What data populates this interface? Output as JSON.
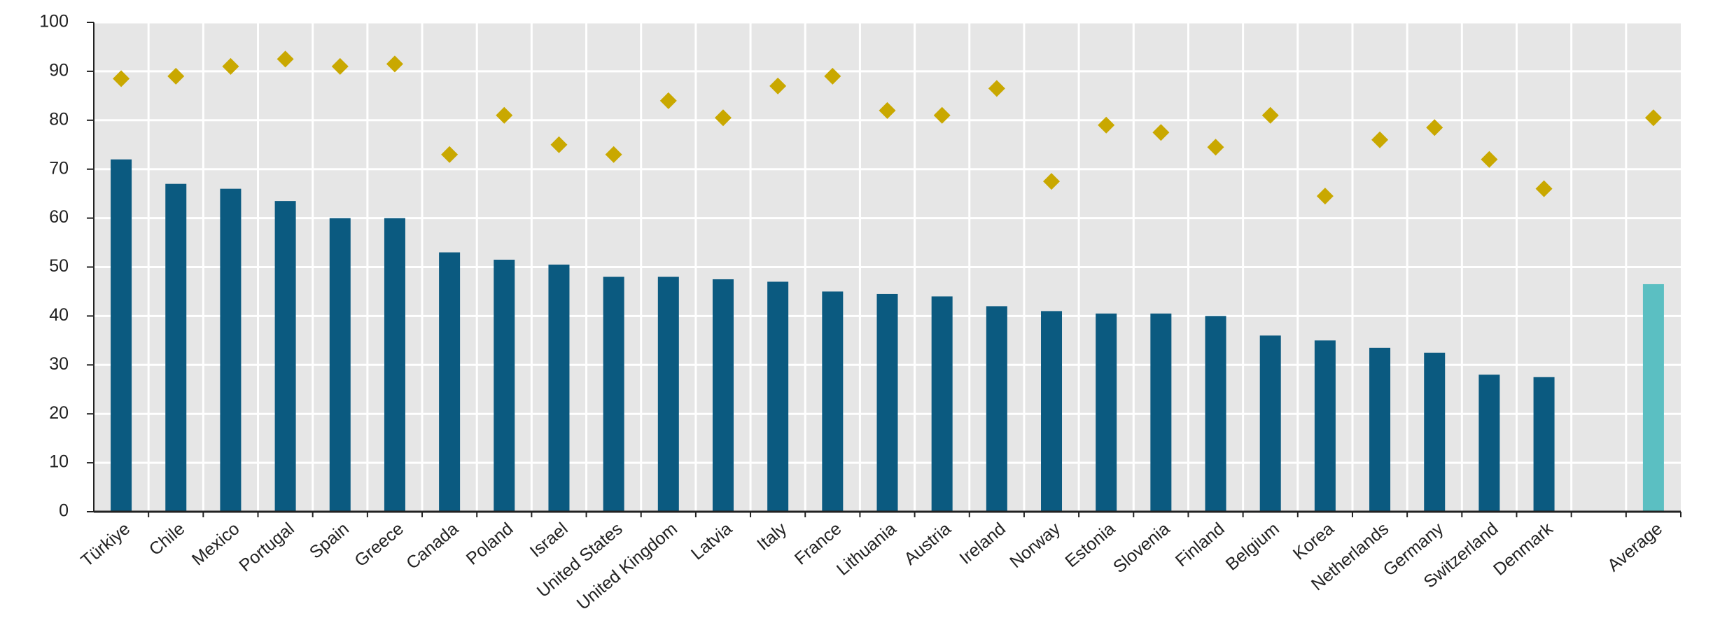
{
  "chart_data": {
    "type": "bar",
    "categories": [
      "Türkiye",
      "Chile",
      "Mexico",
      "Portugal",
      "Spain",
      "Greece",
      "Canada",
      "Poland",
      "Israel",
      "United States",
      "United Kingdom",
      "Latvia",
      "Italy",
      "France",
      "Lithuania",
      "Austria",
      "Ireland",
      "Norway",
      "Estonia",
      "Slovenia",
      "Finland",
      "Belgium",
      "Korea",
      "Netherlands",
      "Germany",
      "Switzerland",
      "Denmark",
      null,
      "Average"
    ],
    "series": [
      {
        "type": "bar",
        "color": "#0b5a80",
        "highlight_color": "#5bbfc2",
        "highlight_index": 28,
        "values": [
          72,
          67,
          66,
          63.5,
          60,
          60,
          53,
          51.5,
          50.5,
          48,
          48,
          47.5,
          47,
          45,
          44.5,
          44,
          42,
          41,
          40.5,
          40.5,
          40,
          36,
          35,
          33.5,
          32.5,
          28,
          27.5,
          null,
          46.5
        ]
      },
      {
        "type": "diamond",
        "color": "#c9a800",
        "values": [
          88.5,
          89,
          91,
          92.5,
          91,
          91.5,
          73,
          81,
          75,
          73,
          84,
          80.5,
          87,
          89,
          82,
          81,
          86.5,
          67.5,
          79,
          77.5,
          74.5,
          81,
          64.5,
          76,
          78.5,
          72,
          66,
          null,
          80.5
        ]
      }
    ],
    "ylim": [
      0,
      100
    ],
    "yticks": [
      0,
      10,
      20,
      30,
      40,
      50,
      60,
      70,
      80,
      90,
      100
    ],
    "grid": true
  }
}
